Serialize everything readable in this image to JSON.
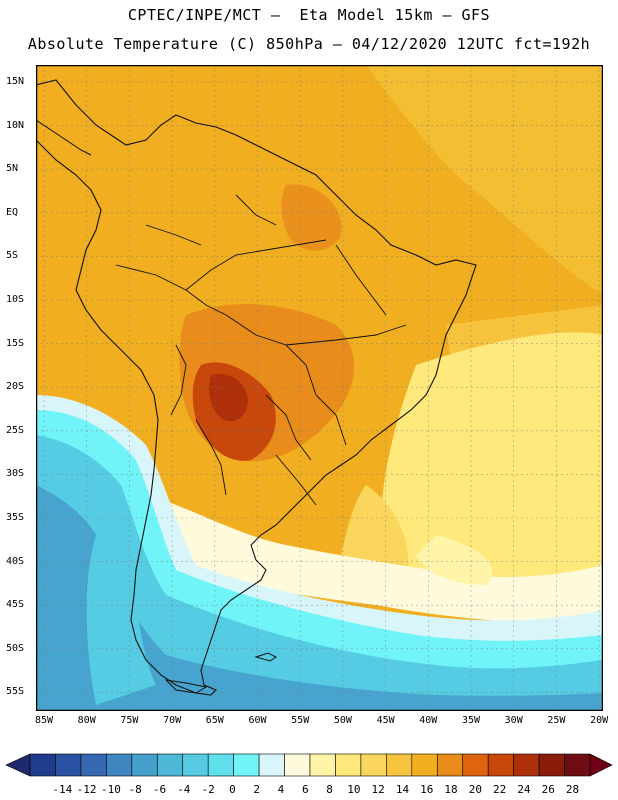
{
  "header": {
    "line1": "CPTEC/INPE/MCT –  Eta Model 15km – GFS",
    "line2": "Absolute Temperature (C) 850hPa – 04/12/2020 12UTC fct=192h"
  },
  "lat_labels": [
    "15N",
    "10N",
    "5N",
    "EQ",
    "5S",
    "10S",
    "15S",
    "20S",
    "25S",
    "30S",
    "35S",
    "40S",
    "45S",
    "50S",
    "55S"
  ],
  "lon_labels": [
    "85W",
    "80W",
    "75W",
    "70W",
    "65W",
    "60W",
    "55W",
    "50W",
    "45W",
    "40W",
    "35W",
    "30W",
    "25W",
    "20W"
  ],
  "colorbar": {
    "labels": [
      "-14",
      "-12",
      "-10",
      "-8",
      "-6",
      "-4",
      "-2",
      "0",
      "2",
      "4",
      "6",
      "8",
      "10",
      "12",
      "14",
      "16",
      "18",
      "20",
      "22",
      "24",
      "26",
      "28"
    ],
    "colors": [
      "#1f3c8c",
      "#2952a3",
      "#3568b0",
      "#3f86c0",
      "#45a0cc",
      "#4fb8d8",
      "#55cce3",
      "#5fe0ec",
      "#70f4f8",
      "#d8f6fa",
      "#fffadc",
      "#fff4a8",
      "#ffe87c",
      "#fbd65c",
      "#f5c43c",
      "#f0ae20",
      "#e88c1c",
      "#de6410",
      "#c8480c",
      "#ad300a",
      "#8a1c0a",
      "#6e0e14"
    ],
    "left_arrow_color": "#1e2a6e",
    "right_arrow_color": "#6e0014"
  },
  "map": {
    "field_colors": {
      "warm_base": "#f0ae20",
      "warm_light": "#f5c43c",
      "hot": "#e88c1c",
      "hottest": "#c8480c",
      "pale_yellow": "#ffe87c",
      "cream": "#fffadc",
      "light_blue": "#d8f6fa",
      "cyan": "#70f4f8",
      "sky": "#55cce3",
      "blue": "#45a0cc"
    }
  }
}
